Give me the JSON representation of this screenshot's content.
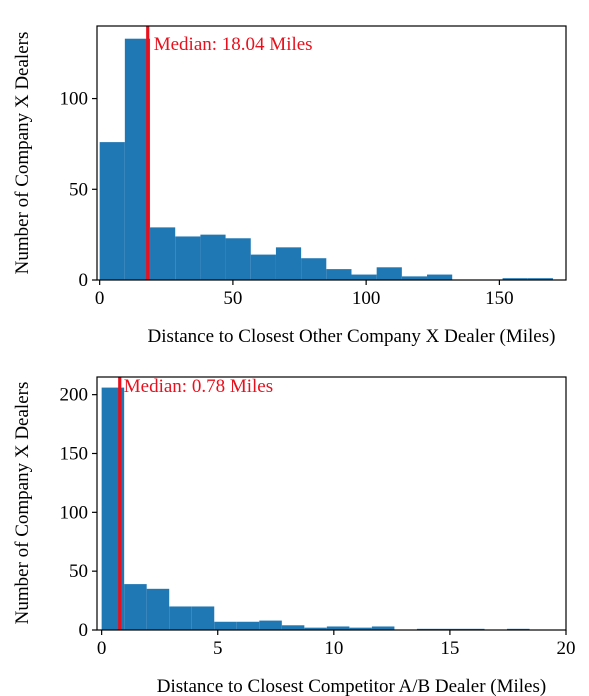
{
  "chart_data": [
    {
      "type": "histogram",
      "xlabel": "Distance to Closest Other Company X Dealer (Miles)",
      "ylabel": "Number of Company X Dealers",
      "xlim": [
        -1,
        175
      ],
      "ylim": [
        0,
        140
      ],
      "xticks": [
        0,
        50,
        100,
        150
      ],
      "yticks": [
        0,
        50,
        100
      ],
      "bin_edges": [
        0,
        9.45,
        18.9,
        28.35,
        37.8,
        47.25,
        56.7,
        66.15,
        75.6,
        85.05,
        94.5,
        103.95,
        113.4,
        122.85,
        132.3,
        141.75,
        151.2,
        160.65,
        170.1
      ],
      "counts": [
        76,
        133,
        29,
        24,
        25,
        23,
        14,
        18,
        12,
        6,
        3,
        7,
        2,
        3,
        0,
        0,
        1,
        1
      ],
      "median": 18.04,
      "median_label": "Median: 18.04 Miles",
      "bar_color": "#1f77b4",
      "median_color": "#e8101d"
    },
    {
      "type": "histogram",
      "xlabel": "Distance to Closest Competitor A/B Dealer (Miles)",
      "ylabel": "Number of Company X Dealers",
      "xlim": [
        -0.2,
        20
      ],
      "ylim": [
        0,
        215
      ],
      "xticks": [
        0,
        5,
        10,
        15,
        20
      ],
      "yticks": [
        0,
        50,
        100,
        150,
        200
      ],
      "bin_edges": [
        0,
        0.97,
        1.94,
        2.91,
        3.88,
        4.85,
        5.82,
        6.79,
        7.76,
        8.73,
        9.7,
        10.67,
        11.64,
        12.61,
        13.58,
        14.55,
        15.52,
        16.49,
        17.46,
        18.43,
        19.4
      ],
      "counts": [
        206,
        39,
        35,
        20,
        20,
        7,
        7,
        8,
        4,
        2,
        3,
        2,
        3,
        0,
        1,
        1,
        1,
        0,
        1,
        0
      ],
      "median": 0.78,
      "median_label": "Median: 0.78 Miles",
      "bar_color": "#1f77b4",
      "median_color": "#e8101d"
    }
  ]
}
